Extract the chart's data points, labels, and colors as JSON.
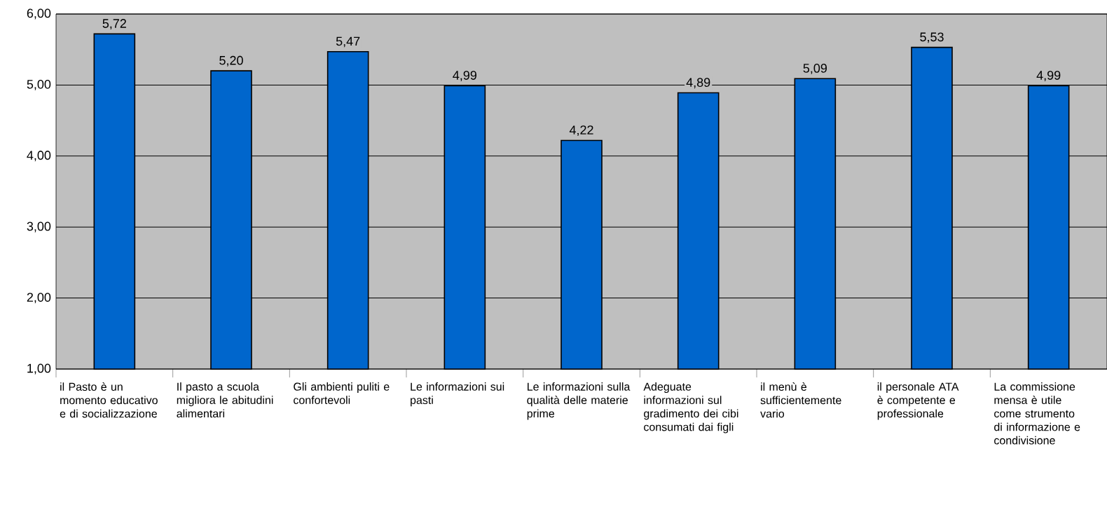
{
  "chart_data": {
    "type": "bar",
    "categories": [
      "il Pasto è un momento educativo e di socializzazione",
      "Il pasto a scuola migliora le abitudini alimentari",
      "Gli ambienti puliti e confortevoli",
      "Le informazioni sui pasti",
      "Le informazioni sulla qualità delle materie prime",
      "Adeguate informazioni sul gradimento dei cibi consumati dai figli",
      "il menù è sufficientemente vario",
      "il personale ATA è competente e professionale",
      "La commissione mensa è utile come strumento di informazione e condivisione"
    ],
    "values": [
      5.72,
      5.2,
      5.47,
      4.99,
      4.22,
      4.89,
      5.09,
      5.53,
      4.99
    ],
    "value_labels": [
      "5,72",
      "5,20",
      "5,47",
      "4,99",
      "4,22",
      "4,89",
      "5,09",
      "5,53",
      "4,99"
    ],
    "color": "#0066cc",
    "ylim": [
      1,
      6
    ],
    "yticks": [
      {
        "value": 1,
        "label": "1,00"
      },
      {
        "value": 2,
        "label": "2,00"
      },
      {
        "value": 3,
        "label": "3,00"
      },
      {
        "value": 4,
        "label": "4,00"
      },
      {
        "value": 5,
        "label": "5,00"
      },
      {
        "value": 6,
        "label": "6,00"
      }
    ],
    "grid": "y"
  }
}
